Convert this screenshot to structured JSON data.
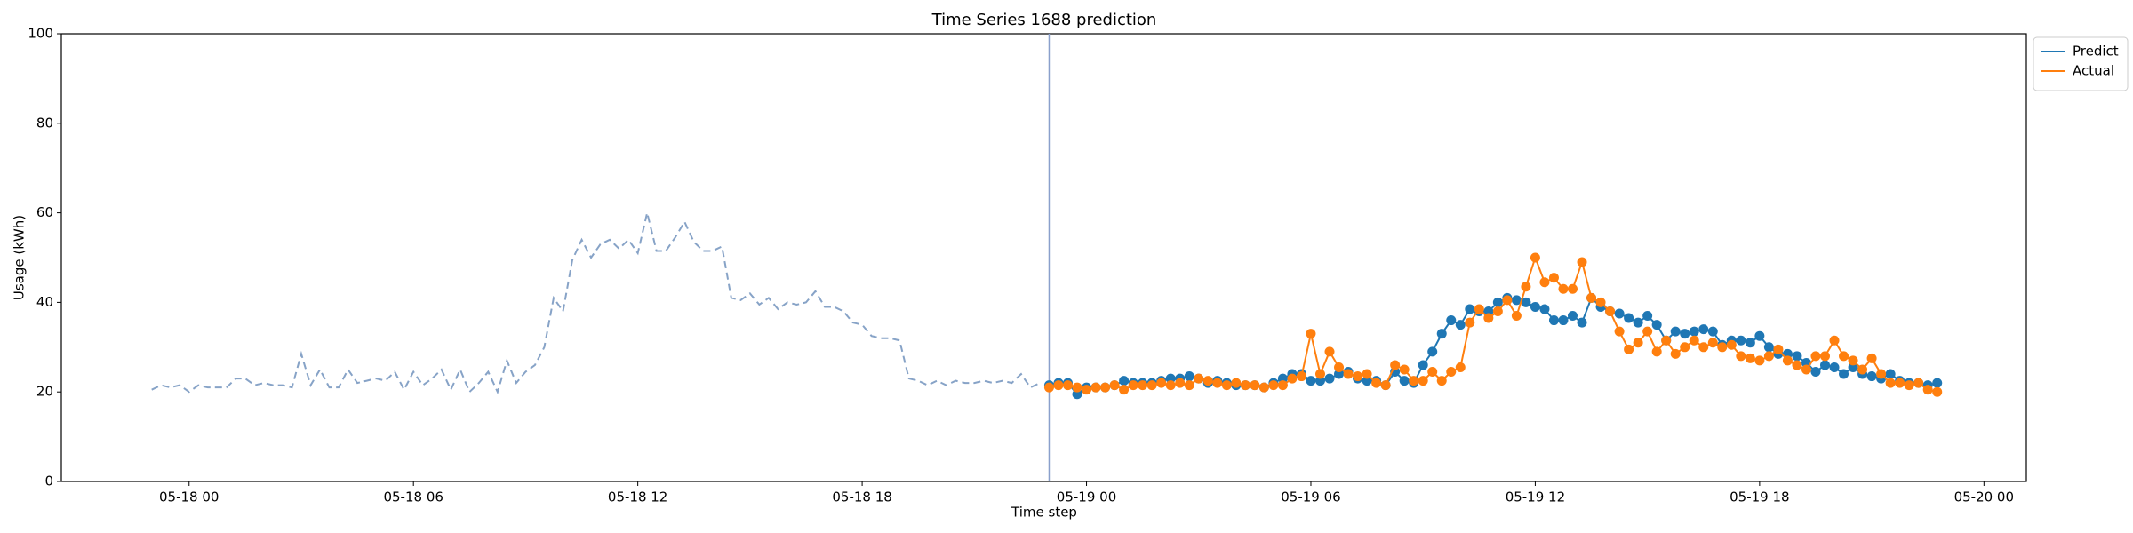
{
  "chart_data": {
    "type": "line",
    "title": "Time Series 1688 prediction",
    "xlabel": "Time step",
    "ylabel": "Usage (kWh)",
    "ylim": [
      0,
      100
    ],
    "yticks": [
      0,
      20,
      40,
      60,
      80,
      100
    ],
    "xlim": [
      "05-17 20:35",
      "05-20 01:08"
    ],
    "xticks": [
      "05-18 00",
      "05-18 06",
      "05-18 12",
      "05-18 18",
      "05-19 00",
      "05-19 06",
      "05-19 12",
      "05-19 18",
      "05-20 00"
    ],
    "split": "05-18 23:00",
    "split_color": "#8aa0cc",
    "legend": "upper right",
    "x": [
      "05-18 23:00",
      "05-18 23:15",
      "05-18 23:30",
      "05-18 23:45",
      "05-19 00:00",
      "05-19 00:15",
      "05-19 00:30",
      "05-19 00:45",
      "05-19 01:00",
      "05-19 01:15",
      "05-19 01:30",
      "05-19 01:45",
      "05-19 02:00",
      "05-19 02:15",
      "05-19 02:30",
      "05-19 02:45",
      "05-19 03:00",
      "05-19 03:15",
      "05-19 03:30",
      "05-19 03:45",
      "05-19 04:00",
      "05-19 04:15",
      "05-19 04:30",
      "05-19 04:45",
      "05-19 05:00",
      "05-19 05:15",
      "05-19 05:30",
      "05-19 05:45",
      "05-19 06:00",
      "05-19 06:15",
      "05-19 06:30",
      "05-19 06:45",
      "05-19 07:00",
      "05-19 07:15",
      "05-19 07:30",
      "05-19 07:45",
      "05-19 08:00",
      "05-19 08:15",
      "05-19 08:30",
      "05-19 08:45",
      "05-19 09:00",
      "05-19 09:15",
      "05-19 09:30",
      "05-19 09:45",
      "05-19 10:00",
      "05-19 10:15",
      "05-19 10:30",
      "05-19 10:45",
      "05-19 11:00",
      "05-19 11:15",
      "05-19 11:30",
      "05-19 11:45",
      "05-19 12:00",
      "05-19 12:15",
      "05-19 12:30",
      "05-19 12:45",
      "05-19 13:00",
      "05-19 13:15",
      "05-19 13:30",
      "05-19 13:45",
      "05-19 14:00",
      "05-19 14:15",
      "05-19 14:30",
      "05-19 14:45",
      "05-19 15:00",
      "05-19 15:15",
      "05-19 15:30",
      "05-19 15:45",
      "05-19 16:00",
      "05-19 16:15",
      "05-19 16:30",
      "05-19 16:45",
      "05-19 17:00",
      "05-19 17:15",
      "05-19 17:30",
      "05-19 17:45",
      "05-19 18:00",
      "05-19 18:15",
      "05-19 18:30",
      "05-19 18:45",
      "05-19 19:00",
      "05-19 19:15",
      "05-19 19:30",
      "05-19 19:45",
      "05-19 20:00",
      "05-19 20:15",
      "05-19 20:30",
      "05-19 20:45",
      "05-19 21:00",
      "05-19 21:15",
      "05-19 21:30",
      "05-19 21:45",
      "05-19 22:00",
      "05-19 22:15",
      "05-19 22:30",
      "05-19 22:45"
    ],
    "series": [
      {
        "color": "#87a3c7",
        "dashed": true,
        "markers": false,
        "x": [
          "05-17 23:00",
          "05-17 23:15",
          "05-17 23:30",
          "05-17 23:45",
          "05-18 00:00",
          "05-18 00:15",
          "05-18 00:30",
          "05-18 00:45",
          "05-18 01:00",
          "05-18 01:15",
          "05-18 01:30",
          "05-18 01:45",
          "05-18 02:00",
          "05-18 02:15",
          "05-18 02:30",
          "05-18 02:45",
          "05-18 03:00",
          "05-18 03:15",
          "05-18 03:30",
          "05-18 03:45",
          "05-18 04:00",
          "05-18 04:15",
          "05-18 04:30",
          "05-18 04:45",
          "05-18 05:00",
          "05-18 05:15",
          "05-18 05:30",
          "05-18 05:45",
          "05-18 06:00",
          "05-18 06:15",
          "05-18 06:30",
          "05-18 06:45",
          "05-18 07:00",
          "05-18 07:15",
          "05-18 07:30",
          "05-18 07:45",
          "05-18 08:00",
          "05-18 08:15",
          "05-18 08:30",
          "05-18 08:45",
          "05-18 09:00",
          "05-18 09:15",
          "05-18 09:30",
          "05-18 09:45",
          "05-18 10:00",
          "05-18 10:15",
          "05-18 10:30",
          "05-18 10:45",
          "05-18 11:00",
          "05-18 11:15",
          "05-18 11:30",
          "05-18 11:45",
          "05-18 12:00",
          "05-18 12:15",
          "05-18 12:30",
          "05-18 12:45",
          "05-18 13:00",
          "05-18 13:15",
          "05-18 13:30",
          "05-18 13:45",
          "05-18 14:00",
          "05-18 14:15",
          "05-18 14:30",
          "05-18 14:45",
          "05-18 15:00",
          "05-18 15:15",
          "05-18 15:30",
          "05-18 15:45",
          "05-18 16:00",
          "05-18 16:15",
          "05-18 16:30",
          "05-18 16:45",
          "05-18 17:00",
          "05-18 17:15",
          "05-18 17:30",
          "05-18 17:45",
          "05-18 18:00",
          "05-18 18:15",
          "05-18 18:30",
          "05-18 18:45",
          "05-18 19:00",
          "05-18 19:15",
          "05-18 19:30",
          "05-18 19:45",
          "05-18 20:00",
          "05-18 20:15",
          "05-18 20:30",
          "05-18 20:45",
          "05-18 21:00",
          "05-18 21:15",
          "05-18 21:30",
          "05-18 21:45",
          "05-18 22:00",
          "05-18 22:15",
          "05-18 22:30",
          "05-18 22:45"
        ],
        "values": [
          20.5,
          21.5,
          21,
          21.5,
          20,
          21.5,
          21,
          21,
          21,
          23,
          23,
          21.5,
          22,
          21.5,
          21.5,
          21,
          28.5,
          21.5,
          25,
          21,
          21,
          25,
          22,
          22.5,
          23,
          22.5,
          24.5,
          20.5,
          24.5,
          21.5,
          23,
          25,
          20.5,
          25,
          20,
          22,
          24.5,
          20,
          27,
          22,
          24.5,
          26,
          30,
          41,
          38,
          49.5,
          54,
          50,
          53,
          54,
          52,
          54,
          51,
          60,
          51.5,
          51.5,
          54.5,
          58,
          53.5,
          51.5,
          51.5,
          52.5,
          41,
          40.5,
          42,
          39.5,
          41,
          38.5,
          40,
          39.5,
          40,
          42.5,
          39,
          39,
          38,
          35.5,
          35,
          32.5,
          32,
          32,
          31.5,
          23,
          22.5,
          21.5,
          22.5,
          21.5,
          22.5,
          22,
          22,
          22.5,
          22,
          22.5,
          22,
          24,
          21,
          22
        ]
      },
      {
        "name": "Predict",
        "color": "#1f77b4",
        "markers": true,
        "values": [
          21.5,
          22,
          22,
          19.5,
          21,
          21,
          21,
          21.5,
          22.5,
          22,
          22,
          22,
          22.5,
          23,
          23,
          23.5,
          23,
          22,
          22.5,
          22,
          21.5,
          21.5,
          21.5,
          21,
          22,
          23,
          24,
          24,
          22.5,
          22.5,
          23,
          24,
          24.5,
          23,
          22.5,
          22.5,
          21.5,
          24.5,
          22.5,
          22,
          26,
          29,
          33,
          36,
          35,
          38.5,
          38,
          38,
          40,
          41,
          40.5,
          40,
          39,
          38.5,
          36,
          36,
          37,
          35.5,
          41,
          39,
          38,
          37.5,
          36.5,
          35.5,
          37,
          35,
          31.5,
          33.5,
          33,
          33.5,
          34,
          33.5,
          30.5,
          31.5,
          31.5,
          31,
          32.5,
          30,
          28.5,
          28.5,
          28,
          26.5,
          24.5,
          26,
          25.5,
          24,
          25.5,
          24,
          23.5,
          23,
          24,
          22.5,
          22,
          22,
          21.5,
          22
        ]
      },
      {
        "name": "Actual",
        "color": "#ff7f0e",
        "markers": true,
        "values": [
          21,
          21.5,
          21.5,
          21,
          20.5,
          21,
          21,
          21.5,
          20.5,
          21.5,
          21.5,
          21.5,
          22,
          21.5,
          22,
          21.5,
          23,
          22.5,
          22,
          21.5,
          22,
          21.5,
          21.5,
          21,
          21.5,
          21.5,
          23,
          23.5,
          33,
          24,
          29,
          25.5,
          24,
          23.5,
          24,
          22,
          21.5,
          26,
          25,
          22.5,
          22.5,
          24.5,
          22.5,
          24.5,
          25.5,
          35.5,
          38.5,
          36.5,
          38,
          40.5,
          37,
          43.5,
          50,
          44.5,
          45.5,
          43,
          43,
          49,
          41,
          40,
          38,
          33.5,
          29.5,
          31,
          33.5,
          29,
          31.5,
          28.5,
          30,
          31.5,
          30,
          31,
          30,
          30.5,
          28,
          27.5,
          27,
          28,
          29.5,
          27,
          26,
          25,
          28,
          28,
          31.5,
          28,
          27,
          25,
          27.5,
          24,
          22,
          22,
          21.5,
          22,
          20.5,
          20
        ]
      }
    ]
  }
}
